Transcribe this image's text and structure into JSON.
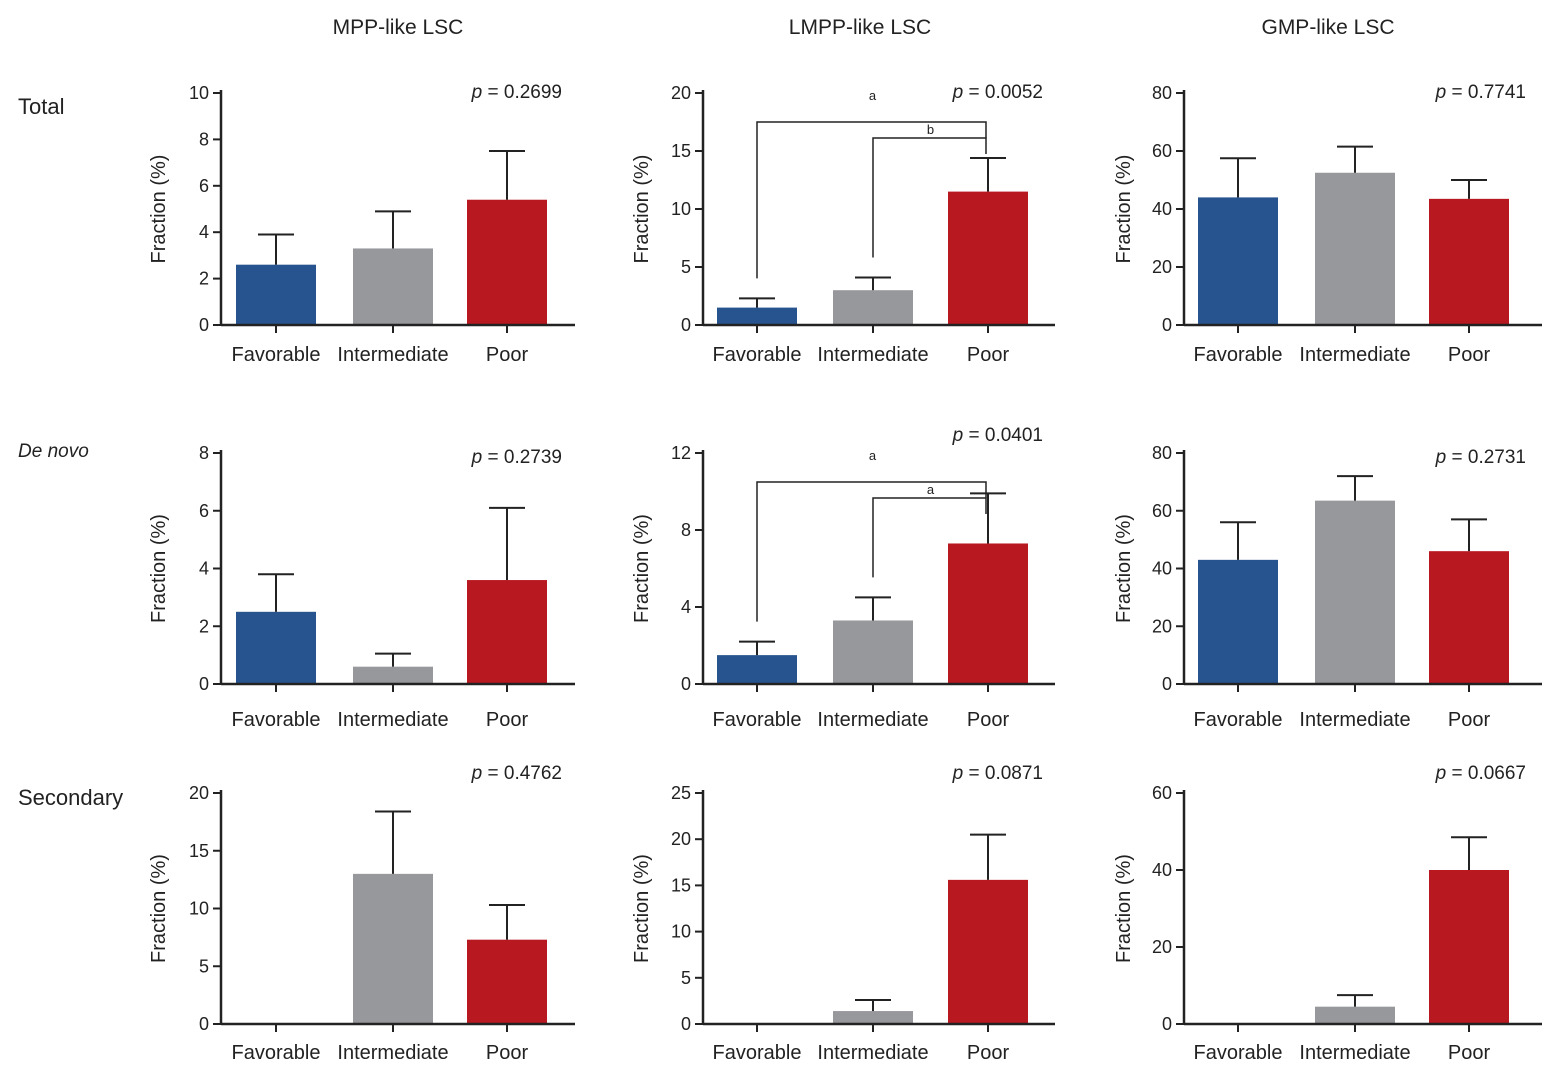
{
  "column_titles": [
    "MPP-like LSC",
    "LMPP-like LSC",
    "GMP-like LSC"
  ],
  "row_labels": [
    "Total",
    "De novo",
    "Secondary"
  ],
  "colors": {
    "Favorable": "#27548f",
    "Intermediate": "#97989c",
    "Poor": "#b81820",
    "axis": "#222222"
  },
  "chart_data": [
    {
      "type": "bar",
      "row": "Total",
      "column": "MPP-like LSC",
      "ylabel": "Fraction (%)",
      "categories": [
        "Favorable",
        "Intermediate",
        "Poor"
      ],
      "values": [
        2.6,
        3.3,
        5.4
      ],
      "errors": [
        1.3,
        1.6,
        2.1
      ],
      "ylim": [
        0,
        10
      ],
      "yticks": [
        0,
        2,
        4,
        6,
        8,
        10
      ],
      "p_value": "p = 0.2699",
      "brackets": []
    },
    {
      "type": "bar",
      "row": "Total",
      "column": "LMPP-like LSC",
      "ylabel": "Fraction (%)",
      "categories": [
        "Favorable",
        "Intermediate",
        "Poor"
      ],
      "values": [
        1.5,
        3.0,
        11.5
      ],
      "errors": [
        0.8,
        1.1,
        2.9
      ],
      "ylim": [
        0,
        20
      ],
      "yticks": [
        0,
        5,
        10,
        15,
        20
      ],
      "p_value": "p = 0.0052",
      "brackets": [
        {
          "from": 0,
          "to": 2,
          "label": "a"
        },
        {
          "from": 1,
          "to": 2,
          "label": "b"
        }
      ]
    },
    {
      "type": "bar",
      "row": "Total",
      "column": "GMP-like LSC",
      "ylabel": "Fraction (%)",
      "categories": [
        "Favorable",
        "Intermediate",
        "Poor"
      ],
      "values": [
        44,
        52.5,
        43.5
      ],
      "errors": [
        13.5,
        9,
        6.5
      ],
      "ylim": [
        0,
        80
      ],
      "yticks": [
        0,
        20,
        40,
        60,
        80
      ],
      "p_value": "p = 0.7741",
      "brackets": []
    },
    {
      "type": "bar",
      "row": "De novo",
      "column": "MPP-like LSC",
      "ylabel": "Fraction (%)",
      "categories": [
        "Favorable",
        "Intermediate",
        "Poor"
      ],
      "values": [
        2.5,
        0.6,
        3.6
      ],
      "errors": [
        1.3,
        0.45,
        2.5
      ],
      "ylim": [
        0,
        8
      ],
      "yticks": [
        0,
        2,
        4,
        6,
        8
      ],
      "p_value": "p = 0.2739",
      "brackets": []
    },
    {
      "type": "bar",
      "row": "De novo",
      "column": "LMPP-like LSC",
      "ylabel": "Fraction (%)",
      "categories": [
        "Favorable",
        "Intermediate",
        "Poor"
      ],
      "values": [
        1.5,
        3.3,
        7.3
      ],
      "errors": [
        0.7,
        1.2,
        2.6
      ],
      "ylim": [
        0,
        12
      ],
      "yticks": [
        0,
        4,
        8,
        12
      ],
      "p_value": "p = 0.0401",
      "brackets": [
        {
          "from": 0,
          "to": 2,
          "label": "a"
        },
        {
          "from": 1,
          "to": 2,
          "label": "a"
        }
      ]
    },
    {
      "type": "bar",
      "row": "De novo",
      "column": "GMP-like LSC",
      "ylabel": "Fraction (%)",
      "categories": [
        "Favorable",
        "Intermediate",
        "Poor"
      ],
      "values": [
        43,
        63.5,
        46
      ],
      "errors": [
        13,
        8.5,
        11
      ],
      "ylim": [
        0,
        80
      ],
      "yticks": [
        0,
        20,
        40,
        60,
        80
      ],
      "p_value": "p = 0.2731",
      "brackets": []
    },
    {
      "type": "bar",
      "row": "Secondary",
      "column": "MPP-like LSC",
      "ylabel": "Fraction (%)",
      "categories": [
        "Favorable",
        "Intermediate",
        "Poor"
      ],
      "values": [
        0,
        13.0,
        7.3
      ],
      "errors": [
        0,
        5.4,
        3.0
      ],
      "ylim": [
        0,
        20
      ],
      "yticks": [
        0,
        5,
        10,
        15,
        20
      ],
      "p_value": "p = 0.4762",
      "brackets": []
    },
    {
      "type": "bar",
      "row": "Secondary",
      "column": "LMPP-like LSC",
      "ylabel": "Fraction (%)",
      "categories": [
        "Favorable",
        "Intermediate",
        "Poor"
      ],
      "values": [
        0,
        1.4,
        15.6
      ],
      "errors": [
        0,
        1.2,
        4.9
      ],
      "ylim": [
        0,
        25
      ],
      "yticks": [
        0,
        5,
        10,
        15,
        20,
        25
      ],
      "p_value": "p = 0.0871",
      "brackets": []
    },
    {
      "type": "bar",
      "row": "Secondary",
      "column": "GMP-like LSC",
      "ylabel": "Fraction (%)",
      "categories": [
        "Favorable",
        "Intermediate",
        "Poor"
      ],
      "values": [
        0,
        4.5,
        40
      ],
      "errors": [
        0,
        3,
        8.5
      ],
      "ylim": [
        0,
        60
      ],
      "yticks": [
        0,
        20,
        40,
        60
      ],
      "p_value": "p = 0.0667",
      "brackets": []
    }
  ]
}
